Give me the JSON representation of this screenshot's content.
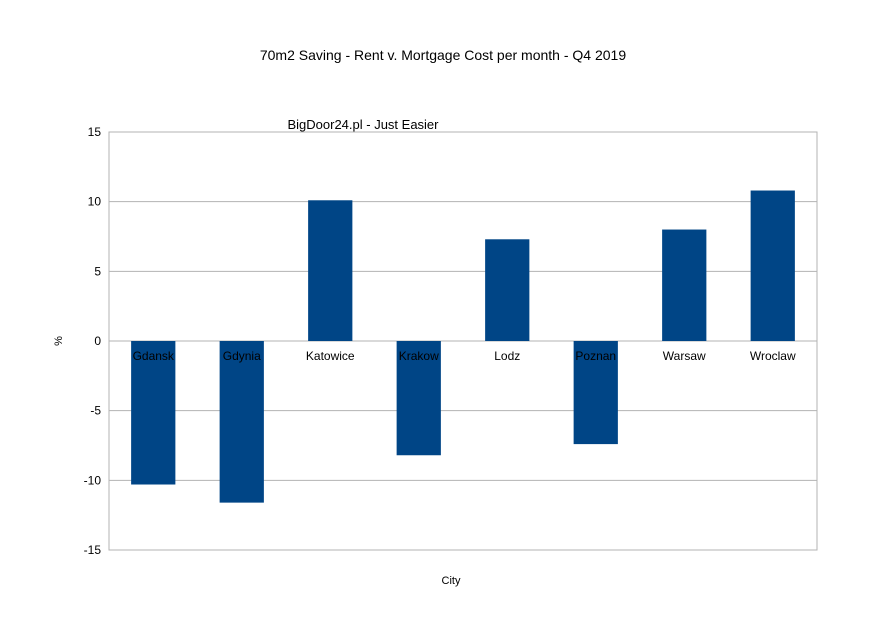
{
  "chart_data": {
    "type": "bar",
    "title": "70m2 Saving - Rent v. Mortgage Cost per month - Q4 2019",
    "subtitle": "BigDoor24.pl - Just Easier",
    "xlabel": "City",
    "ylabel": "%",
    "categories": [
      "Gdansk",
      "Gdynia",
      "Katowice",
      "Krakow",
      "Lodz",
      "Poznan",
      "Warsaw",
      "Wroclaw"
    ],
    "values": [
      -10.3,
      -11.6,
      10.1,
      -8.2,
      7.3,
      -7.4,
      8.0,
      10.8
    ],
    "ylim": [
      -15,
      15
    ],
    "yticks": [
      15,
      10,
      5,
      0,
      -5,
      -10,
      -15
    ],
    "grid": true,
    "legend": "none",
    "bar_color": "#004586"
  }
}
